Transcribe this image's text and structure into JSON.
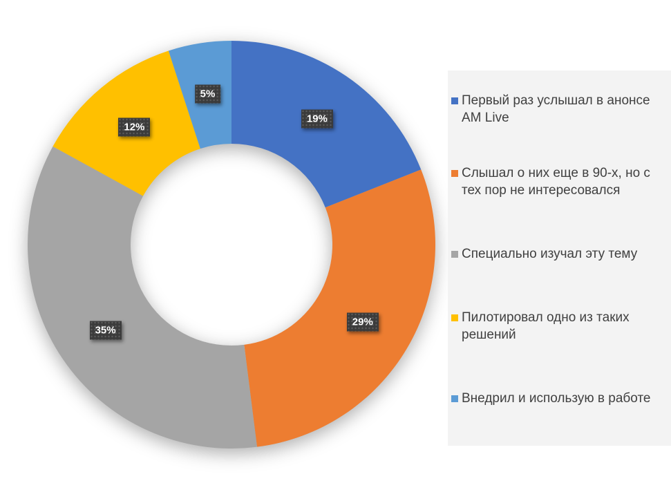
{
  "chart_data": {
    "type": "pie",
    "subtype": "donut",
    "labels": [
      "Первый раз услышал в анонсе AM Live",
      "Слышал о них еще в 90-х, но с тех пор не интересовался",
      "Специально изучал эту тему",
      "Пилотировал одно из таких решений",
      "Внедрил и использую в работе"
    ],
    "values": [
      19,
      29,
      35,
      12,
      5
    ],
    "value_labels": [
      "19%",
      "29%",
      "35%",
      "12%",
      "5%"
    ],
    "colors": [
      "#4472C4",
      "#ED7D31",
      "#A5A5A5",
      "#FFC000",
      "#5B9BD5"
    ],
    "start_angle_deg": 0,
    "direction": "clockwise",
    "hole_ratio": 0.495,
    "legend_position": "right",
    "style": {
      "page_background": "#FFFFFF",
      "legend_background": "#F3F3F3",
      "legend_text_color": "#404040",
      "data_label_background": "#3B3B3B",
      "data_label_text_color": "#FFFFFF"
    }
  }
}
